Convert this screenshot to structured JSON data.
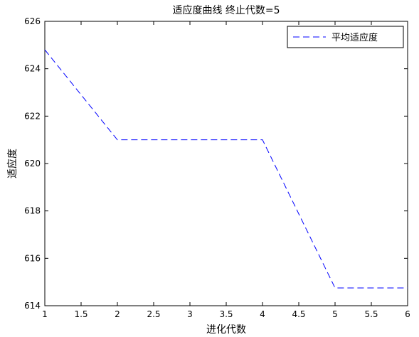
{
  "chart_data": {
    "type": "line",
    "title": "适应度曲线 终止代数=5",
    "xlabel": "进化代数",
    "ylabel": "适应度",
    "xlim": [
      1,
      6
    ],
    "ylim": [
      614,
      626
    ],
    "xticks": [
      "1",
      "1.5",
      "2",
      "2.5",
      "3",
      "3.5",
      "4",
      "4.5",
      "5",
      "5.5",
      "6"
    ],
    "yticks": [
      "614",
      "616",
      "618",
      "620",
      "622",
      "624",
      "626"
    ],
    "grid": false,
    "legend_position": "top-right",
    "series": [
      {
        "name": "平均适应度",
        "color": "#0000ff",
        "line_style": "dashed",
        "x": [
          1,
          2,
          3,
          4,
          5,
          6
        ],
        "y": [
          624.8,
          621.0,
          621.0,
          621.0,
          614.75,
          614.75
        ]
      }
    ]
  }
}
